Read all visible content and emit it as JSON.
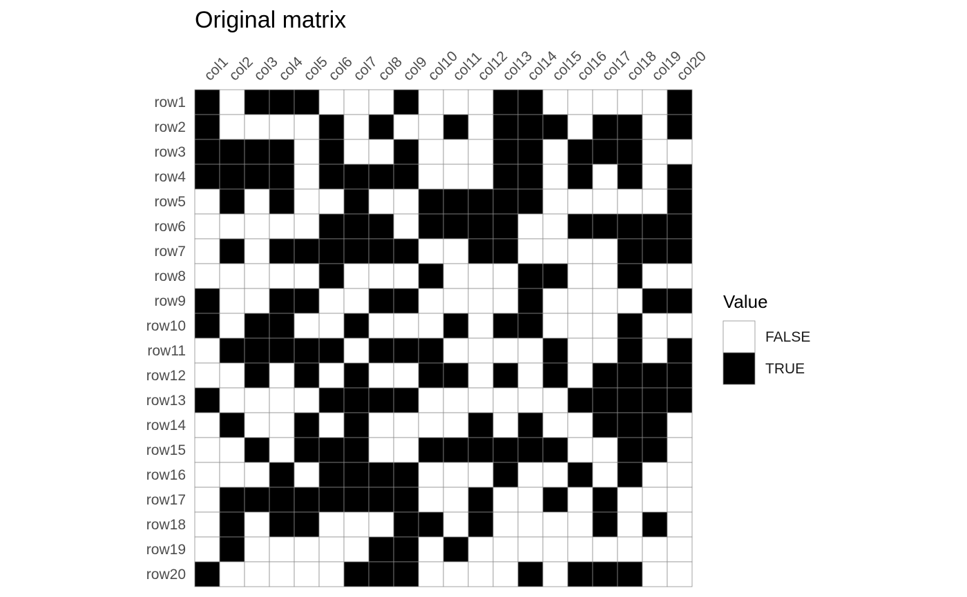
{
  "chart_data": {
    "type": "heatmap",
    "title": "Original matrix",
    "x_categories": [
      "col1",
      "col2",
      "col3",
      "col4",
      "col5",
      "col6",
      "col7",
      "col8",
      "col9",
      "col10",
      "col11",
      "col12",
      "col13",
      "col14",
      "col15",
      "col16",
      "col17",
      "col18",
      "col19",
      "col20"
    ],
    "y_categories": [
      "row1",
      "row2",
      "row3",
      "row4",
      "row5",
      "row6",
      "row7",
      "row8",
      "row9",
      "row10",
      "row11",
      "row12",
      "row13",
      "row14",
      "row15",
      "row16",
      "row17",
      "row18",
      "row19",
      "row20"
    ],
    "values": [
      [
        1,
        0,
        1,
        1,
        1,
        0,
        0,
        0,
        1,
        0,
        0,
        0,
        1,
        1,
        0,
        0,
        0,
        0,
        0,
        1
      ],
      [
        1,
        0,
        0,
        0,
        0,
        1,
        0,
        1,
        0,
        0,
        1,
        0,
        1,
        1,
        1,
        0,
        1,
        1,
        0,
        1
      ],
      [
        1,
        1,
        1,
        1,
        0,
        1,
        0,
        0,
        1,
        0,
        0,
        0,
        1,
        1,
        0,
        1,
        1,
        1,
        0,
        0
      ],
      [
        1,
        1,
        1,
        1,
        0,
        1,
        1,
        1,
        1,
        0,
        0,
        0,
        1,
        1,
        0,
        1,
        0,
        1,
        0,
        1
      ],
      [
        0,
        1,
        0,
        1,
        0,
        0,
        1,
        0,
        0,
        1,
        1,
        1,
        1,
        1,
        0,
        0,
        0,
        0,
        0,
        1
      ],
      [
        0,
        0,
        0,
        0,
        0,
        1,
        1,
        1,
        0,
        1,
        1,
        1,
        1,
        0,
        0,
        1,
        1,
        1,
        1,
        1
      ],
      [
        0,
        1,
        0,
        1,
        1,
        1,
        1,
        1,
        1,
        0,
        0,
        1,
        1,
        0,
        0,
        0,
        0,
        1,
        1,
        1
      ],
      [
        0,
        0,
        0,
        0,
        0,
        1,
        0,
        0,
        0,
        1,
        0,
        0,
        0,
        1,
        1,
        0,
        0,
        1,
        0,
        0
      ],
      [
        1,
        0,
        0,
        1,
        1,
        0,
        0,
        1,
        1,
        0,
        0,
        0,
        0,
        1,
        0,
        0,
        0,
        0,
        1,
        1
      ],
      [
        1,
        0,
        1,
        1,
        0,
        0,
        1,
        0,
        0,
        0,
        1,
        0,
        1,
        1,
        0,
        0,
        0,
        1,
        0,
        0
      ],
      [
        0,
        1,
        1,
        1,
        1,
        1,
        0,
        1,
        1,
        1,
        0,
        0,
        0,
        0,
        1,
        0,
        0,
        1,
        0,
        1
      ],
      [
        0,
        0,
        1,
        0,
        1,
        0,
        1,
        0,
        0,
        1,
        1,
        0,
        1,
        0,
        1,
        0,
        1,
        1,
        1,
        1
      ],
      [
        1,
        0,
        0,
        0,
        0,
        1,
        1,
        1,
        1,
        0,
        0,
        0,
        0,
        0,
        0,
        1,
        1,
        1,
        1,
        1
      ],
      [
        0,
        1,
        0,
        0,
        1,
        0,
        1,
        0,
        0,
        0,
        0,
        1,
        0,
        1,
        0,
        0,
        1,
        1,
        1,
        0
      ],
      [
        0,
        0,
        1,
        0,
        1,
        1,
        1,
        0,
        0,
        1,
        1,
        1,
        1,
        1,
        1,
        0,
        0,
        1,
        1,
        0
      ],
      [
        0,
        0,
        0,
        1,
        0,
        1,
        1,
        1,
        1,
        0,
        0,
        0,
        1,
        0,
        0,
        1,
        0,
        1,
        0,
        0
      ],
      [
        0,
        1,
        1,
        1,
        1,
        1,
        1,
        1,
        1,
        0,
        0,
        1,
        0,
        0,
        1,
        0,
        1,
        0,
        0,
        0
      ],
      [
        0,
        1,
        0,
        1,
        1,
        0,
        0,
        0,
        1,
        1,
        0,
        1,
        0,
        0,
        0,
        0,
        1,
        0,
        1,
        0
      ],
      [
        0,
        1,
        0,
        0,
        0,
        0,
        0,
        1,
        1,
        0,
        1,
        0,
        0,
        0,
        0,
        0,
        0,
        0,
        0,
        0
      ],
      [
        1,
        0,
        0,
        0,
        0,
        0,
        1,
        1,
        1,
        0,
        0,
        0,
        0,
        1,
        0,
        1,
        1,
        1,
        0,
        0
      ]
    ],
    "legend": {
      "title": "Value",
      "placement": "right",
      "items": [
        {
          "label": "FALSE",
          "color": "#ffffff"
        },
        {
          "label": "TRUE",
          "color": "#000000"
        }
      ]
    },
    "colors": {
      "false": "#ffffff",
      "true": "#000000",
      "border": "#8c8c8c"
    }
  }
}
